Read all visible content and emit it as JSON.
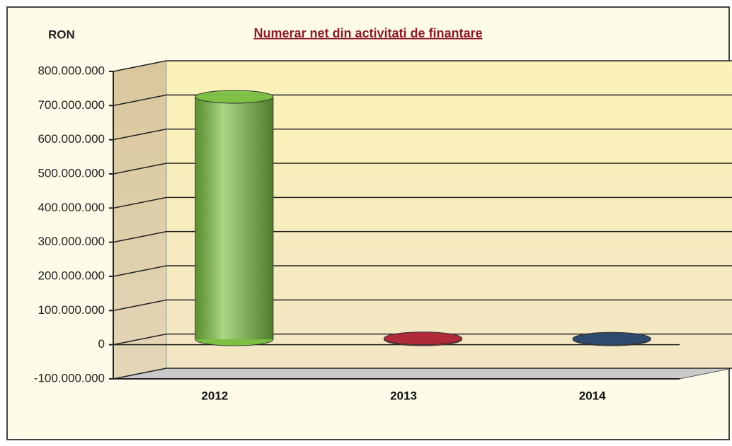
{
  "chart_data": {
    "type": "bar3d",
    "title": "Numerar net din activitati de finantare",
    "ylabel": "RON",
    "categories": [
      "2012",
      "2013",
      "2014"
    ],
    "values": [
      710000000,
      3000000,
      2000000
    ],
    "colors": [
      "#7cc043",
      "#b02a3a",
      "#2e4a6e"
    ],
    "ylim": [
      -100000000,
      800000000
    ],
    "yticks": [
      {
        "value": -100000000,
        "label": "-100.000.000"
      },
      0,
      {
        "value": 100000000,
        "label": "100.000.000"
      },
      {
        "value": 200000000,
        "label": "200.000.000"
      },
      {
        "value": 300000000,
        "label": "300.000.000"
      },
      {
        "value": 400000000,
        "label": "400.000.000"
      },
      {
        "value": 500000000,
        "label": "500.000.000"
      },
      {
        "value": 600000000,
        "label": "600.000.000"
      },
      {
        "value": 700000000,
        "label": "700.000.000"
      },
      {
        "value": 800000000,
        "label": "800.000.000"
      }
    ],
    "grid": true
  }
}
